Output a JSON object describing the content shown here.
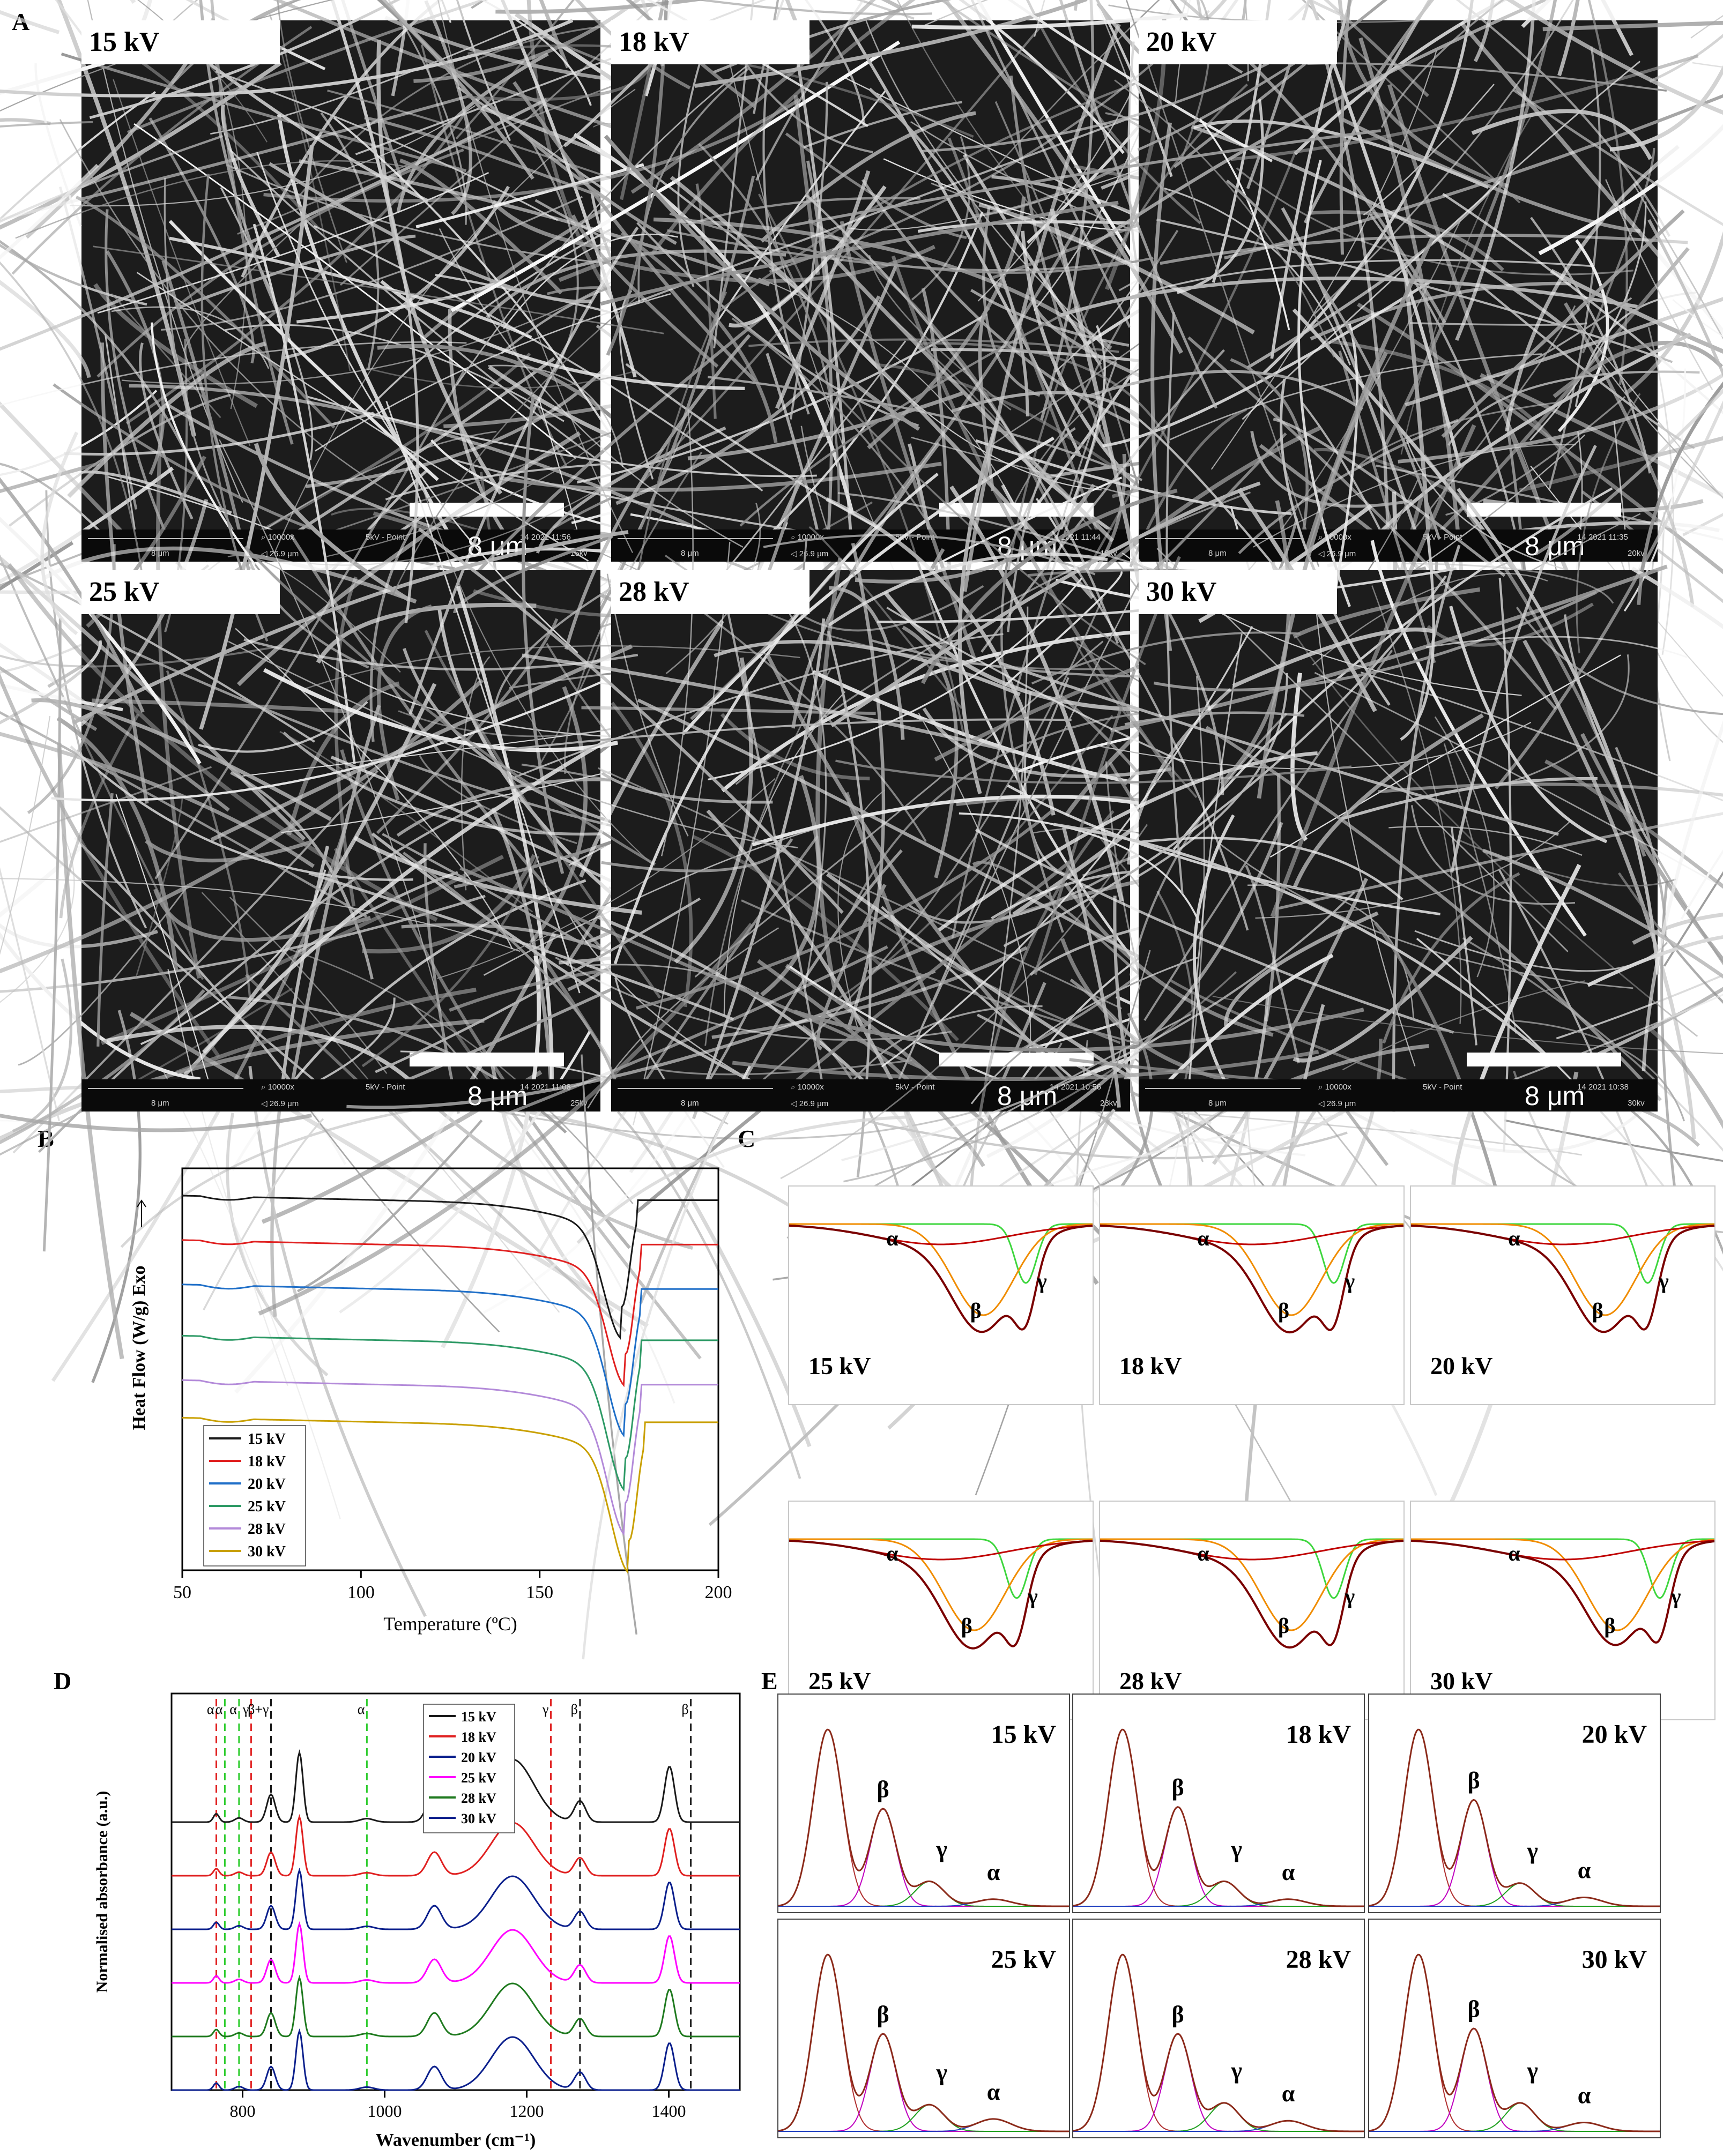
{
  "panels": {
    "a": "A",
    "b": "B",
    "c": "C",
    "d": "D",
    "e": "E"
  },
  "sem": {
    "scale_label": "8 μm",
    "magnification": "10000x",
    "hv": "5kV - Point",
    "ruler_label": "8 μm",
    "field_width": "26.9 μm",
    "images": [
      {
        "voltage": "15 kV",
        "datetime": "14 2021 11:56",
        "sample": "15kv"
      },
      {
        "voltage": "18 kV",
        "datetime": "14 2021 11:44",
        "sample": "18kv"
      },
      {
        "voltage": "20 kV",
        "datetime": "14 2021 11:35",
        "sample": "20kv"
      },
      {
        "voltage": "25 kV",
        "datetime": "14 2021 11:08",
        "sample": "25kv"
      },
      {
        "voltage": "28 kV",
        "datetime": "14 2021 10:56",
        "sample": "28kv"
      },
      {
        "voltage": "30 kV",
        "datetime": "14 2021 10:38",
        "sample": "30kv"
      }
    ]
  },
  "colors": {
    "black": "#1a1a1a",
    "red": "#e02020",
    "blue": "#1f6fc8",
    "green": "#2e9a66",
    "violet": "#b38ad9",
    "gold": "#c9a000",
    "navy": "#0b1f8c",
    "magenta": "#ff00ff",
    "dgreen": "#1f7a1f",
    "fitred": "#c00000",
    "orange": "#f08c00",
    "lime": "#3ed63e"
  },
  "chart_data": [
    {
      "type": "line",
      "panel": "B",
      "xlabel": "Temperature (ºC)",
      "ylabel": "Heat Flow (W/g) Exo",
      "xlim": [
        50,
        200
      ],
      "xticks": [
        50,
        100,
        150,
        200
      ],
      "legend_position": "bottom-left",
      "series": [
        {
          "name": "15 kV",
          "color": "#1a1a1a",
          "base": 0.92,
          "drop": 0.7,
          "min_x": 173
        },
        {
          "name": "18 kV",
          "color": "#e02020",
          "base": 0.79,
          "drop": 0.72,
          "min_x": 174
        },
        {
          "name": "20 kV",
          "color": "#1f6fc8",
          "base": 0.66,
          "drop": 0.76,
          "min_x": 174
        },
        {
          "name": "25 kV",
          "color": "#2e9a66",
          "base": 0.51,
          "drop": 0.78,
          "min_x": 174
        },
        {
          "name": "28 kV",
          "color": "#b38ad9",
          "base": 0.38,
          "drop": 0.78,
          "min_x": 174
        },
        {
          "name": "30 kV",
          "color": "#c9a000",
          "base": 0.27,
          "drop": 0.78,
          "min_x": 175
        }
      ]
    },
    {
      "type": "line",
      "panel": "C",
      "description_labels": {
        "alpha": "α",
        "beta": "β",
        "gamma": "γ"
      },
      "subplots": [
        {
          "label": "15 kV",
          "gamma_pos": 0.78
        },
        {
          "label": "18 kV",
          "gamma_pos": 0.77
        },
        {
          "label": "20 kV",
          "gamma_pos": 0.78
        },
        {
          "label": "25 kV",
          "gamma_pos": 0.75
        },
        {
          "label": "28 kV",
          "gamma_pos": 0.77
        },
        {
          "label": "30 kV",
          "gamma_pos": 0.82
        }
      ]
    },
    {
      "type": "line",
      "panel": "D",
      "xlabel": "Wavenumber (cm⁻¹)",
      "ylabel": "Normalised absorbance (a.u.)",
      "xlim": [
        700,
        1500
      ],
      "xticks": [
        800,
        1000,
        1200,
        1400
      ],
      "legend_position": "top",
      "series": [
        {
          "name": "15 kV",
          "color": "#1a1a1a"
        },
        {
          "name": "18 kV",
          "color": "#e02020"
        },
        {
          "name": "20 kV",
          "color": "#0b1f8c"
        },
        {
          "name": "25 kV",
          "color": "#ff00ff"
        },
        {
          "name": "28 kV",
          "color": "#1f7a1f"
        },
        {
          "name": "30 kV",
          "color": "#0b1f8c"
        }
      ],
      "markers": [
        {
          "x": 763,
          "label": "α",
          "color": "#e02020"
        },
        {
          "x": 775,
          "label": "α",
          "color": "#2ecc2e"
        },
        {
          "x": 795,
          "label": "α",
          "color": "#2ecc2e"
        },
        {
          "x": 812,
          "label": "γ",
          "color": "#e02020"
        },
        {
          "x": 840,
          "label": "β+γ",
          "color": "#1a1a1a"
        },
        {
          "x": 975,
          "label": "α",
          "color": "#2ecc2e"
        },
        {
          "x": 1234,
          "label": "γ",
          "color": "#e02020"
        },
        {
          "x": 1275,
          "label": "β",
          "color": "#1a1a1a"
        },
        {
          "x": 1431,
          "label": "β",
          "color": "#1a1a1a"
        }
      ]
    },
    {
      "type": "line",
      "panel": "E",
      "peak_labels": {
        "beta": "β",
        "gamma": "γ",
        "alpha": "α"
      },
      "subplots": [
        {
          "label": "15 kV",
          "beta": 0.55,
          "gamma": 0.14,
          "alpha": 0.04
        },
        {
          "label": "18 kV",
          "beta": 0.56,
          "gamma": 0.14,
          "alpha": 0.04
        },
        {
          "label": "20 kV",
          "beta": 0.6,
          "gamma": 0.13,
          "alpha": 0.05
        },
        {
          "label": "25 kV",
          "beta": 0.55,
          "gamma": 0.15,
          "alpha": 0.07
        },
        {
          "label": "28 kV",
          "beta": 0.55,
          "gamma": 0.16,
          "alpha": 0.06
        },
        {
          "label": "30 kV",
          "beta": 0.58,
          "gamma": 0.16,
          "alpha": 0.05
        }
      ]
    }
  ]
}
